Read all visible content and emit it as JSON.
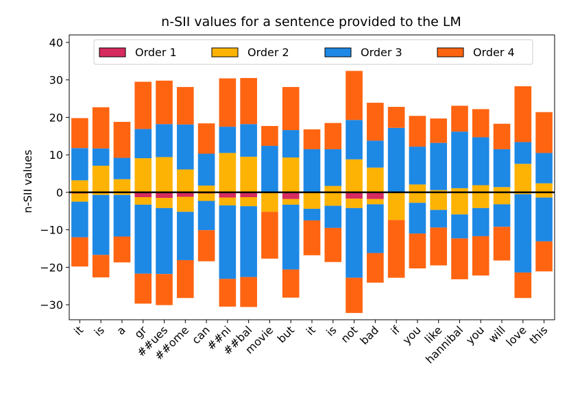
{
  "chart_data": {
    "type": "bar",
    "subtype": "stacked-diverging",
    "title": "n-SII values for a sentence provided to the LM",
    "xlabel": "",
    "ylabel": "n-SII values",
    "ylim": [
      -34,
      42
    ],
    "yticks": [
      -30,
      -20,
      -10,
      0,
      10,
      20,
      30,
      40
    ],
    "legend_position": "top-center",
    "categories": [
      "it",
      "is",
      "a",
      "gr",
      "##ues",
      "##ome",
      "can",
      "##ni",
      "##bal",
      "movie",
      "but",
      "it",
      "is",
      "not",
      "bad",
      "if",
      "you",
      "like",
      "hannibal",
      "you",
      "will",
      "love",
      "this"
    ],
    "series": [
      {
        "name": "Order 1",
        "color": "#d62b5e",
        "positive": [
          0,
          0,
          0,
          0,
          0,
          0,
          0,
          0,
          0,
          0,
          0,
          0,
          0,
          0,
          0,
          0,
          0,
          0,
          0,
          0,
          0,
          0,
          0
        ],
        "negative": [
          -0.3,
          -0.2,
          -0.2,
          -1.3,
          -1.5,
          -1.2,
          -0.3,
          -1.4,
          -1.3,
          -0.2,
          -1.8,
          -0.2,
          -0.2,
          -1.7,
          -1.8,
          -0.2,
          -0.2,
          -0.2,
          -0.2,
          -0.2,
          -0.2,
          -0.2,
          -0.2
        ]
      },
      {
        "name": "Order 2",
        "color": "#fdb304",
        "positive": [
          3.2,
          7.1,
          3.5,
          9.1,
          9.4,
          6.1,
          1.8,
          10.5,
          9.5,
          0,
          9.3,
          0,
          1.7,
          8.8,
          6.6,
          0,
          2.1,
          0.6,
          1.1,
          1.9,
          1.4,
          7.6,
          2.4
        ],
        "negative": [
          -2.2,
          -0.5,
          -0.5,
          -2.0,
          -2.7,
          -4.0,
          -2.0,
          -2.1,
          -2.4,
          -5.0,
          -1.5,
          -4.2,
          -3.4,
          -2.5,
          -1.4,
          -7.2,
          -2.6,
          -4.5,
          -5.7,
          -4.0,
          -3.0,
          -0.3,
          -1.2
        ]
      },
      {
        "name": "Order 3",
        "color": "#1e88e5",
        "positive": [
          8.6,
          4.6,
          5.7,
          7.8,
          8.8,
          12.0,
          8.5,
          7.0,
          8.7,
          12.4,
          7.3,
          11.5,
          9.8,
          10.5,
          7.2,
          17.2,
          10.1,
          12.6,
          15.1,
          12.8,
          10.1,
          5.8,
          8.1
        ],
        "negative": [
          -9.5,
          -16.0,
          -11.1,
          -18.4,
          -17.6,
          -12.9,
          -7.8,
          -19.6,
          -18.9,
          0,
          -17.3,
          -3.1,
          -5.9,
          -18.6,
          -13.0,
          0,
          -8.2,
          -4.7,
          -6.4,
          -7.5,
          -6.0,
          -20.9,
          -11.7
        ]
      },
      {
        "name": "Order 4",
        "color": "#ff6411",
        "positive": [
          8.0,
          11.0,
          9.6,
          12.6,
          11.6,
          10.0,
          8.1,
          12.9,
          12.3,
          5.3,
          11.5,
          5.3,
          7.0,
          13.1,
          10.1,
          5.6,
          8.2,
          6.5,
          6.9,
          7.5,
          6.8,
          14.9,
          10.9
        ],
        "negative": [
          -7.8,
          -6.0,
          -6.9,
          -8.0,
          -8.3,
          -10.1,
          -8.3,
          -7.4,
          -8.0,
          -12.5,
          -7.5,
          -9.3,
          -9.1,
          -9.4,
          -7.9,
          -15.4,
          -9.3,
          -10.1,
          -10.9,
          -10.5,
          -9.0,
          -6.8,
          -8.0
        ]
      }
    ]
  }
}
